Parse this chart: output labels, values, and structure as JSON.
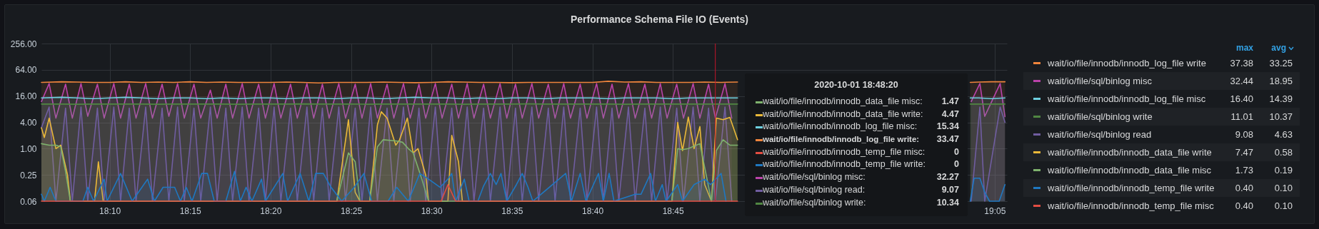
{
  "chart_data": {
    "type": "area",
    "title": "Performance Schema File IO (Events)",
    "x": [
      18.096,
      18.117,
      18.133,
      18.15,
      18.167,
      18.183,
      18.2,
      18.217,
      18.233,
      18.25,
      18.267,
      18.283,
      18.3,
      18.317,
      18.333,
      18.35,
      18.367,
      18.383,
      18.4,
      18.417,
      18.433,
      18.45,
      18.467,
      18.483,
      18.5,
      18.517,
      18.533,
      18.55,
      18.567,
      18.583,
      18.6,
      18.617,
      18.633,
      18.65,
      18.667,
      18.683,
      18.7,
      18.717,
      18.733,
      18.75,
      18.767,
      18.783,
      18.8,
      18.817,
      18.9,
      19.058,
      19.067,
      19.08,
      19.094
    ],
    "xlim": [
      18.096,
      19.096
    ],
    "xticks": [
      {
        "value": 18.1667,
        "label": "18:10"
      },
      {
        "value": 18.25,
        "label": "18:15"
      },
      {
        "value": 18.3333,
        "label": "18:20"
      },
      {
        "value": 18.4167,
        "label": "18:25"
      },
      {
        "value": 18.5,
        "label": "18:30"
      },
      {
        "value": 18.5833,
        "label": "18:35"
      },
      {
        "value": 18.6667,
        "label": "18:40"
      },
      {
        "value": 18.75,
        "label": "18:45"
      },
      {
        "value": 19.0833,
        "label": "19:05"
      }
    ],
    "ylim": [
      0.0625,
      256
    ],
    "yticks": [
      {
        "value": 0.0625,
        "label": "0.06"
      },
      {
        "value": 0.25,
        "label": "0.25"
      },
      {
        "value": 1,
        "label": "1.00"
      },
      {
        "value": 4,
        "label": "4.00"
      },
      {
        "value": 16,
        "label": "16.00"
      },
      {
        "value": 64,
        "label": "64.00"
      },
      {
        "value": 256,
        "label": "256.00"
      }
    ],
    "log": true,
    "grid": true,
    "legend": "right",
    "ref_lines": [
      {
        "axis": "x",
        "value": 18.794,
        "color": "#c4162a"
      }
    ],
    "series": [
      {
        "name": "wait/io/file/innodb/innodb_log_file write",
        "color": "#ef843c",
        "values": [
          33,
          34,
          33.5,
          33,
          33,
          34,
          33,
          33.5,
          33,
          34,
          33,
          33.5,
          33,
          33,
          33,
          33.5,
          33,
          32,
          33,
          33,
          33,
          33.5,
          33,
          32.5,
          33,
          34,
          33.5,
          33,
          33,
          32.5,
          33,
          33,
          33,
          33,
          33,
          35,
          33.5,
          34,
          33,
          33,
          33,
          33.5,
          33,
          33.5,
          null,
          33,
          33.5,
          34,
          34
        ]
      },
      {
        "name": "wait/io/file/sql/binlog misc",
        "color": "#ba43a9",
        "x": [
          18.096,
          18.104,
          18.111,
          18.121,
          18.128,
          18.137,
          18.144,
          18.154,
          18.161,
          18.171,
          18.178,
          18.187,
          18.194,
          18.204,
          18.211,
          18.221,
          18.228,
          18.237,
          18.244,
          18.254,
          18.261,
          18.271,
          18.278,
          18.287,
          18.294,
          18.304,
          18.311,
          18.321,
          18.328,
          18.337,
          18.344,
          18.354,
          18.361,
          18.371,
          18.378,
          18.387,
          18.394,
          18.404,
          18.411,
          18.421,
          18.428,
          18.437,
          18.444,
          18.454,
          18.461,
          18.471,
          18.478,
          18.487,
          18.494,
          18.504,
          18.511,
          18.521,
          18.528,
          18.537,
          18.544,
          18.554,
          18.561,
          18.571,
          18.578,
          18.587,
          18.594,
          18.604,
          18.611,
          18.621,
          18.628,
          18.637,
          18.644,
          18.654,
          18.661,
          18.671,
          18.678,
          18.687,
          18.694,
          18.704,
          18.711,
          18.721,
          18.728,
          18.737,
          18.744,
          18.754,
          18.761,
          18.771,
          18.778,
          18.787,
          18.794,
          18.804,
          18.811,
          18.9,
          19.059,
          19.068,
          19.073,
          19.089,
          19.094
        ],
        "values": [
          12,
          31,
          5,
          30,
          5,
          31,
          5.5,
          30,
          5,
          31,
          5,
          30,
          5,
          31,
          5,
          30,
          5.5,
          31,
          5,
          30,
          5,
          22,
          5,
          30,
          5,
          31,
          5,
          30,
          5,
          31,
          5,
          30,
          5,
          31,
          5,
          30,
          5,
          31,
          5,
          30,
          5,
          31,
          5,
          30,
          5,
          31,
          5,
          30,
          5,
          31,
          5,
          30,
          5,
          31,
          5,
          30,
          5,
          31,
          5,
          30,
          5,
          31,
          5,
          30,
          5,
          31,
          5,
          30,
          5,
          31,
          5,
          30,
          5,
          31,
          5,
          30,
          5,
          31,
          5,
          30,
          5,
          31,
          5,
          30,
          5,
          31,
          5,
          null,
          12,
          31,
          5.5,
          31,
          5.4
        ]
      },
      {
        "name": "wait/io/file/innodb/innodb_log_file misc",
        "color": "#6ed0e0",
        "values": [
          14.5,
          15,
          14.5,
          14,
          14.5,
          15,
          14.5,
          14,
          14.5,
          14.5,
          14,
          14.5,
          14,
          14.5,
          14.5,
          14,
          14.5,
          14.5,
          14,
          14.5,
          14.5,
          14,
          14.5,
          15,
          14.5,
          14.5,
          14,
          14.5,
          14,
          14.5,
          14.5,
          14,
          14.5,
          14.5,
          14.5,
          14,
          14.5,
          14.5,
          14.5,
          14,
          14.5,
          14.5,
          14.5,
          14.5,
          null,
          14.5,
          14.5,
          14,
          14.5
        ]
      },
      {
        "name": "wait/io/file/sql/binlog write",
        "color": "#508642",
        "values": [
          10.5,
          10.5,
          10.4,
          10.5,
          10.5,
          10.5,
          10.5,
          10.4,
          10.5,
          10.5,
          10.5,
          10.5,
          10.4,
          10.5,
          10.5,
          10.5,
          10.6,
          10.5,
          10.5,
          10.5,
          10.4,
          10.5,
          10.5,
          10.5,
          10.5,
          10.5,
          10.4,
          10.5,
          10.5,
          10.5,
          10.6,
          10.5,
          10.5,
          10.5,
          10.5,
          10.5,
          10.4,
          10.5,
          10.5,
          10.5,
          10.5,
          10.5,
          10.5,
          10.5,
          null,
          10.5,
          10.5,
          10.5,
          10.5
        ]
      },
      {
        "name": "wait/io/file/sql/binlog read",
        "color": "#705da0",
        "x": [
          18.096,
          18.104,
          18.111,
          18.121,
          18.128,
          18.137,
          18.144,
          18.154,
          18.161,
          18.171,
          18.178,
          18.187,
          18.194,
          18.204,
          18.211,
          18.221,
          18.228,
          18.237,
          18.244,
          18.254,
          18.261,
          18.271,
          18.278,
          18.287,
          18.294,
          18.304,
          18.311,
          18.321,
          18.328,
          18.337,
          18.344,
          18.354,
          18.361,
          18.371,
          18.378,
          18.387,
          18.394,
          18.404,
          18.411,
          18.421,
          18.428,
          18.437,
          18.444,
          18.454,
          18.461,
          18.471,
          18.478,
          18.487,
          18.494,
          18.504,
          18.511,
          18.521,
          18.528,
          18.537,
          18.544,
          18.554,
          18.561,
          18.571,
          18.578,
          18.587,
          18.594,
          18.604,
          18.611,
          18.621,
          18.628,
          18.637,
          18.644,
          18.654,
          18.661,
          18.671,
          18.678,
          18.687,
          18.694,
          18.704,
          18.711,
          18.721,
          18.728,
          18.737,
          18.744,
          18.754,
          18.761,
          18.771,
          18.778,
          18.787,
          18.794,
          18.804,
          18.811,
          18.9,
          19.059,
          19.068,
          19.073,
          19.089,
          19.094
        ],
        "values": [
          3,
          9,
          0.0625,
          8.5,
          0.0625,
          9,
          0.0625,
          8.5,
          0.0625,
          9,
          0.0625,
          8.5,
          0.0625,
          9,
          0.0625,
          8.5,
          0.0625,
          9,
          0.0625,
          8.5,
          0.0625,
          9,
          0.0625,
          8.5,
          0.0625,
          9,
          0.0625,
          8.5,
          0.0625,
          9,
          0.0625,
          8.5,
          0.0625,
          9,
          0.0625,
          8.5,
          0.0625,
          9,
          0.0625,
          8.5,
          0.0625,
          9,
          0.0625,
          8.5,
          0.0625,
          9,
          0.0625,
          8.5,
          0.0625,
          9,
          0.0625,
          8.5,
          0.0625,
          9,
          0.0625,
          8.5,
          0.0625,
          9,
          0.0625,
          8.5,
          0.0625,
          9,
          0.0625,
          8.5,
          0.0625,
          9,
          0.0625,
          8.5,
          0.0625,
          9,
          0.0625,
          8.5,
          0.0625,
          9,
          0.0625,
          8.5,
          0.0625,
          9,
          0.0625,
          8.5,
          0.0625,
          9,
          0.0625,
          8.5,
          0.0625,
          9,
          0.0625,
          null,
          0.0625,
          9,
          0.0625,
          9,
          4
        ]
      },
      {
        "name": "wait/io/file/innodb/innodb_data_file write",
        "color": "#eab839",
        "x": [
          18.096,
          18.099,
          18.104,
          18.111,
          18.116,
          18.123,
          18.126,
          18.151,
          18.155,
          18.16,
          18.402,
          18.414,
          18.421,
          18.426,
          18.436,
          18.444,
          18.448,
          18.454,
          18.463,
          18.467,
          18.475,
          18.481,
          18.486,
          18.494,
          18.497,
          18.517,
          18.521,
          18.528,
          18.532,
          18.749,
          18.755,
          18.76,
          18.766,
          18.772,
          18.778,
          18.783,
          18.79,
          18.795,
          18.802,
          18.809,
          18.817
        ],
        "values": [
          3,
          1.8,
          5,
          1,
          1.2,
          0.25,
          0.0625,
          0.0625,
          0.5,
          0.0625,
          0.0625,
          4.6,
          0.1,
          0.0625,
          0.0625,
          3.5,
          7,
          5,
          1.2,
          1.6,
          5,
          0.8,
          1,
          0.25,
          0.0625,
          0.0625,
          2,
          0.5,
          0.0625,
          0.0625,
          4,
          0.9,
          5.3,
          1,
          3.2,
          0.15,
          0.0625,
          5,
          4.6,
          5.2,
          1.6
        ]
      },
      {
        "name": "wait/io/file/innodb/innodb_data_file misc",
        "color": "#7eb26d",
        "x": [
          18.096,
          18.104,
          18.111,
          18.116,
          18.121,
          18.126,
          18.402,
          18.405,
          18.414,
          18.421,
          18.426,
          18.436,
          18.444,
          18.45,
          18.463,
          18.47,
          18.476,
          18.481,
          18.49,
          18.497,
          18.749,
          18.755,
          18.76,
          18.766,
          18.778,
          18.79,
          18.795,
          18.802,
          18.809,
          18.817
        ],
        "values": [
          1.3,
          1.2,
          1.2,
          1.1,
          0.3,
          0.0625,
          0.0625,
          0.12,
          0.8,
          0.5,
          0.0625,
          0.0625,
          1.1,
          1.6,
          1.5,
          1.4,
          1,
          0.8,
          0.2,
          0.0625,
          0.0625,
          1,
          0.95,
          1,
          1.3,
          0.0625,
          0.9,
          1.6,
          1.2,
          1.2
        ]
      },
      {
        "name": "wait/io/file/innodb/innodb_temp_file write",
        "color": "#1f78c1",
        "x": [
          18.096,
          18.099,
          18.105,
          18.111,
          18.139,
          18.144,
          18.15,
          18.161,
          18.164,
          18.178,
          18.19,
          18.206,
          18.213,
          18.222,
          18.234,
          18.24,
          18.246,
          18.252,
          18.262,
          18.268,
          18.275,
          18.287,
          18.296,
          18.302,
          18.308,
          18.314,
          18.324,
          18.328,
          18.346,
          18.351,
          18.364,
          18.373,
          18.38,
          18.388,
          18.396,
          18.407,
          18.42,
          18.43,
          18.438,
          18.455,
          18.464,
          18.476,
          18.488,
          18.497,
          18.509,
          18.517,
          18.521,
          18.525,
          18.534,
          18.539,
          18.548,
          18.554,
          18.561,
          18.567,
          18.572,
          18.578,
          18.588,
          18.594,
          18.6,
          18.605,
          18.639,
          18.645,
          18.654,
          18.66,
          18.673,
          18.678,
          18.684,
          18.689,
          18.711,
          18.717,
          18.727,
          18.732,
          18.739,
          18.743,
          18.755,
          18.76,
          18.772,
          18.783,
          18.789,
          18.8,
          18.805,
          18.9,
          19.058,
          19.062,
          19.068,
          19.073,
          19.078,
          19.088,
          19.094
        ],
        "values": [
          0.09,
          0.0625,
          0.13,
          0.0625,
          0.0625,
          0.13,
          0.0625,
          0.2,
          0.0625,
          0.27,
          0.0625,
          0.2,
          0.0625,
          0.13,
          0.13,
          0.0625,
          0.13,
          0.0625,
          0.27,
          0.27,
          0.0625,
          0.0625,
          0.3,
          0.0625,
          0.13,
          0.0625,
          0.2,
          0.0625,
          0.27,
          0.0625,
          0.27,
          0.0625,
          0.27,
          0.27,
          0.13,
          0.0625,
          0.13,
          0.27,
          0.0625,
          0.0625,
          0.13,
          0.0625,
          0.27,
          0.2,
          0.13,
          0.2,
          0.27,
          0.0625,
          0.2,
          0.0625,
          0.0625,
          0.14,
          0.27,
          0.15,
          0.27,
          0.0625,
          0.15,
          0.27,
          0.13,
          0.0625,
          0.27,
          0.0625,
          0.27,
          0.0625,
          0.27,
          0.0625,
          0.27,
          0.0625,
          0.09,
          0.09,
          0.27,
          0.0625,
          0.15,
          0.0625,
          0.15,
          0.0625,
          0.15,
          0.2,
          0.15,
          0.27,
          0.0625,
          null,
          0.0625,
          0.21,
          0.21,
          0.1,
          0.0625,
          0.0625,
          0.15
        ]
      },
      {
        "name": "wait/io/file/innodb/innodb_temp_file misc",
        "color": "#e24d42",
        "x": [
          18.096,
          18.51,
          18.517,
          18.525,
          18.817
        ],
        "values": [
          0.0625,
          0.0625,
          0.15,
          0.0625,
          0.0625
        ]
      }
    ],
    "annotations": [
      "2020-10-01 18:48:20",
      "wait/io/file/innodb/innodb_data_file misc:",
      "1.47",
      "wait/io/file/innodb/innodb_data_file write:",
      "4.47",
      "wait/io/file/innodb/innodb_log_file misc:",
      "15.34",
      "wait/io/file/innodb/innodb_log_file write:",
      "33.47",
      "wait/io/file/innodb/innodb_temp_file misc:",
      "0",
      "wait/io/file/innodb/innodb_temp_file write:",
      "0",
      "wait/io/file/sql/binlog misc:",
      "32.27",
      "wait/io/file/sql/binlog read:",
      "9.07",
      "wait/io/file/sql/binlog write:",
      "10.34",
      "max",
      "avg",
      "37.38",
      "33.25",
      "32.44",
      "18.95",
      "16.40",
      "14.39",
      "11.01",
      "10.37",
      "9.08",
      "4.63",
      "7.47",
      "0.58",
      "1.73",
      "0.19",
      "0.40",
      "0.10",
      "0.40",
      "0.10"
    ]
  }
}
